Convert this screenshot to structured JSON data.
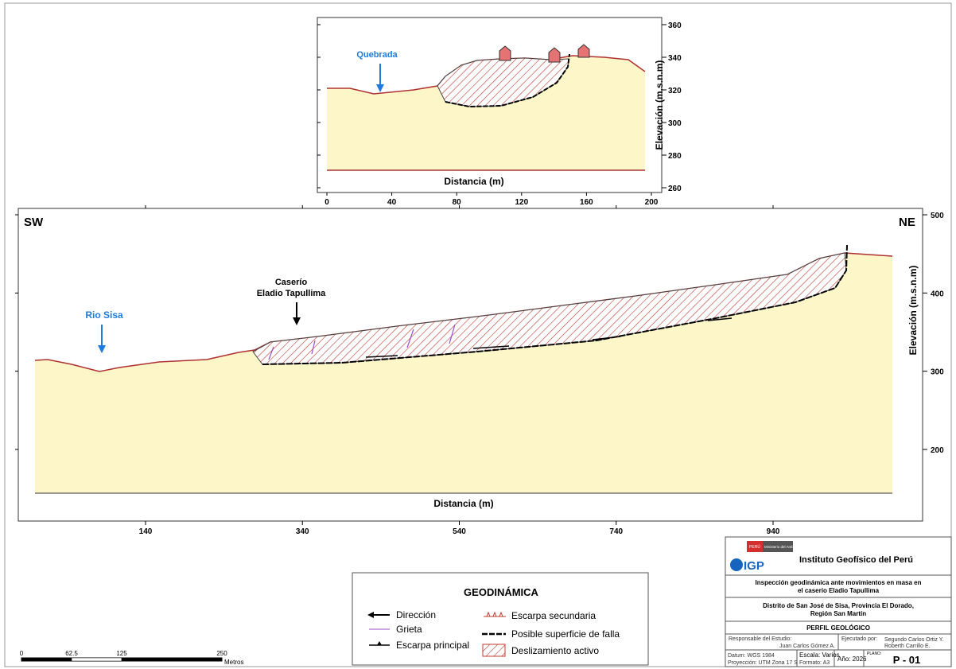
{
  "top_profile": {
    "annotation": "Quebrada",
    "x_label": "Distancia (m)",
    "y_label": "Elevación (m.s.n.m)",
    "x_ticks": [
      0,
      40,
      80,
      120,
      160,
      200
    ],
    "y_ticks": [
      260,
      280,
      300,
      320,
      340,
      360
    ]
  },
  "main_profile": {
    "left_label": "SW",
    "right_label": "NE",
    "river": "Rio Sisa",
    "village_line1": "Caserío",
    "village_line2": "Eladio Tapullima",
    "x_label": "Distancia (m)",
    "y_label": "Elevación (m.s.n.m)",
    "x_ticks": [
      140,
      340,
      540,
      740,
      940
    ],
    "y_ticks": [
      200,
      300,
      400,
      500
    ]
  },
  "legend": {
    "title": "GEODINÁMICA",
    "items": [
      "Dirección",
      "Grieta",
      "Escarpa principal",
      "Escarpa secundaria",
      "Posible superficie de falla",
      "Deslizamiento activo"
    ]
  },
  "title_block": {
    "ministry": "Ministerio del Ambiente",
    "peru": "PERÚ",
    "institute": "Instituto Geofísico del Perú",
    "logo": "IGP",
    "study_line1": "Inspección geodinámica ante movimientos en masa en",
    "study_line2": "el caserío Eladio Tapullima",
    "location_line1": "Distrito de San José de Sisa, Provincia El Dorado,",
    "location_line2": "Región San Martín",
    "sheet_title": "PERFIL GEOLÓGICO",
    "responsible_label": "Responsable del Estudio:",
    "responsible": "Juan Carlos Gómez A.",
    "executed_label": "Ejecutado por:",
    "executed_line1": "Segundo Carlos Ortiz Y.",
    "executed_line2": "Roberth Carrillo E.",
    "datum": "Datum: WGS 1984",
    "projection": "Proyección: UTM Zona 17 S",
    "scale": "Escala: Varios",
    "format": "Formato: A3",
    "year": "Año: 2026",
    "plate_label": "PLANO:",
    "plate": "P - 01"
  },
  "scale_bar": {
    "ticks": [
      0,
      62.5,
      125,
      250
    ],
    "unit": "Metros"
  }
}
